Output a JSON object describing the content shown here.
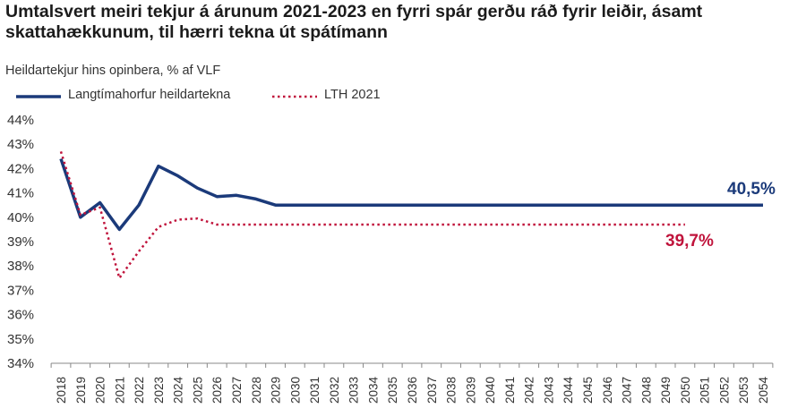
{
  "title": "Umtalsvert meiri tekjur á árunum 2021-2023 en fyrri spár gerðu ráð fyrir leiðir, ásamt skattahækkunum, til hærri tekna út spátímann",
  "chart_data": {
    "type": "line",
    "subtitle": "Heildartekjur hins opinbera, % af VLF",
    "categories": [
      "2018",
      "2019",
      "2020",
      "2021",
      "2022",
      "2023",
      "2024",
      "2025",
      "2026",
      "2027",
      "2028",
      "2029",
      "2030",
      "2031",
      "2032",
      "2033",
      "2034",
      "2035",
      "2036",
      "2037",
      "2038",
      "2039",
      "2040",
      "2041",
      "2042",
      "2043",
      "2044",
      "2045",
      "2046",
      "2047",
      "2048",
      "2049",
      "2050",
      "2051",
      "2052",
      "2053",
      "2054"
    ],
    "ylim": [
      34,
      44
    ],
    "yticks": [
      34,
      35,
      36,
      37,
      38,
      39,
      40,
      41,
      42,
      43,
      44
    ],
    "ytick_labels": [
      "34%",
      "35%",
      "36%",
      "37%",
      "38%",
      "39%",
      "40%",
      "41%",
      "42%",
      "43%",
      "44%"
    ],
    "grid": false,
    "legend_position": "top-left",
    "series": [
      {
        "name": "Langtímahorfur heildartekna",
        "color": "#1b3a7a",
        "style": "solid",
        "values": [
          42.4,
          40.0,
          40.6,
          39.5,
          40.5,
          42.1,
          41.7,
          41.2,
          40.85,
          40.9,
          40.75,
          40.5,
          40.5,
          40.5,
          40.5,
          40.5,
          40.5,
          40.5,
          40.5,
          40.5,
          40.5,
          40.5,
          40.5,
          40.5,
          40.5,
          40.5,
          40.5,
          40.5,
          40.5,
          40.5,
          40.5,
          40.5,
          40.5,
          40.5,
          40.5,
          40.5,
          40.5
        ],
        "end_label": "40,5%"
      },
      {
        "name": "LTH 2021",
        "color": "#c0143c",
        "style": "dotted",
        "values": [
          42.7,
          40.1,
          40.4,
          37.5,
          38.6,
          39.6,
          39.9,
          39.95,
          39.7,
          39.7,
          39.7,
          39.7,
          39.7,
          39.7,
          39.7,
          39.7,
          39.7,
          39.7,
          39.7,
          39.7,
          39.7,
          39.7,
          39.7,
          39.7,
          39.7,
          39.7,
          39.7,
          39.7,
          39.7,
          39.7,
          39.7,
          39.7,
          39.7,
          null,
          null,
          null,
          null
        ],
        "end_label": "39,7%"
      }
    ]
  }
}
